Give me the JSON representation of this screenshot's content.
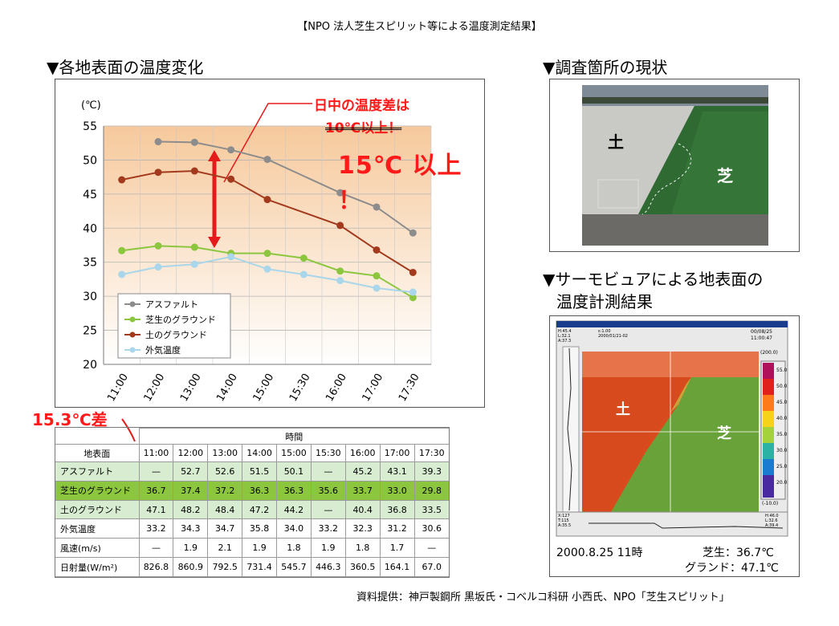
{
  "main_title": "【NPO 法人芝生スピリット等による温度測定結果】",
  "left_heading": "▼各地表面の温度変化",
  "right_heading_1": "▼調査箇所の現状",
  "right_heading_2_line1": "▼サーモビュアによる地表面の",
  "right_heading_2_line2": "温度計測結果",
  "annotation": {
    "day_diff": "日中の温度差は",
    "old_value": "10℃以上！",
    "new_value": "15℃ 以上 ！",
    "diff_label": "15.3℃差"
  },
  "chart_data": {
    "type": "line",
    "x": [
      "11:00",
      "12:00",
      "13:00",
      "14:00",
      "15:00",
      "15:30",
      "16:00",
      "17:00",
      "17:30"
    ],
    "ylabel": "(℃)",
    "ylim": [
      20,
      55
    ],
    "yticks": [
      20,
      25,
      30,
      35,
      40,
      45,
      50,
      55
    ],
    "grid": true,
    "legend_position": "bottom-left",
    "series": [
      {
        "name": "アスファルト",
        "color": "#8c8c8c",
        "values": [
          null,
          52.7,
          52.6,
          51.5,
          50.1,
          null,
          45.2,
          43.1,
          39.3
        ]
      },
      {
        "name": "芝生のグラウンド",
        "color": "#8cc63f",
        "values": [
          36.7,
          37.4,
          37.2,
          36.3,
          36.3,
          35.6,
          33.7,
          33.0,
          29.8
        ]
      },
      {
        "name": "土のグラウンド",
        "color": "#a33a1e",
        "values": [
          47.1,
          48.2,
          48.4,
          47.2,
          44.2,
          null,
          40.4,
          36.8,
          33.5
        ]
      },
      {
        "name": "外気温度",
        "color": "#a9d6ea",
        "values": [
          33.2,
          34.3,
          34.7,
          35.8,
          34.0,
          33.2,
          32.3,
          31.2,
          30.6
        ]
      }
    ]
  },
  "table": {
    "time_header": "時間",
    "row_header": "地表面",
    "times": [
      "11:00",
      "12:00",
      "13:00",
      "14:00",
      "15:00",
      "15:30",
      "16:00",
      "17:00",
      "17:30"
    ],
    "rows": [
      {
        "label": "アスファルト",
        "values": [
          "—",
          "52.7",
          "52.6",
          "51.5",
          "50.1",
          "—",
          "45.2",
          "43.1",
          "39.3"
        ]
      },
      {
        "label": "芝生のグラウンド",
        "values": [
          "36.7",
          "37.4",
          "37.2",
          "36.3",
          "36.3",
          "35.6",
          "33.7",
          "33.0",
          "29.8"
        ]
      },
      {
        "label": "土のグラウンド",
        "values": [
          "47.1",
          "48.2",
          "48.4",
          "47.2",
          "44.2",
          "—",
          "40.4",
          "36.8",
          "33.5"
        ]
      },
      {
        "label": "外気温度",
        "values": [
          "33.2",
          "34.3",
          "34.7",
          "35.8",
          "34.0",
          "33.2",
          "32.3",
          "31.2",
          "30.6"
        ]
      },
      {
        "label": "風速(m/s)",
        "values": [
          "—",
          "1.9",
          "2.1",
          "1.9",
          "1.8",
          "1.9",
          "1.8",
          "1.7",
          "—"
        ]
      },
      {
        "label": "日射量(W/m²)",
        "values": [
          "826.8",
          "860.9",
          "792.5",
          "731.4",
          "545.7",
          "446.3",
          "360.5",
          "164.1",
          "67.0"
        ]
      }
    ]
  },
  "photo": {
    "soil_label": "土",
    "grass_label": "芝"
  },
  "thermo": {
    "soil_label": "土",
    "grass_label": "芝",
    "date_text": "2000.8.25 11時",
    "grass_reading": "芝生：36.7℃",
    "ground_reading": "グランド：47.1℃",
    "scale_values": [
      "55.0",
      "50.0",
      "45.0",
      "40.0",
      "35.0",
      "30.0",
      "25.0",
      "20.0",
      "15.0"
    ],
    "scale_top": "(200.0)",
    "scale_bottom": "(-10.0)",
    "window_date": "00/08/25",
    "window_time": "11:00:47",
    "header_left_1": "H:45.4",
    "header_left_2": "L:32.1",
    "header_left_3": "A:37.3",
    "header_mid_1": "ε:1.00",
    "header_mid_2": "2000/01/21-02",
    "bottom_left_1": "X:127",
    "bottom_left_2": "T:115",
    "bottom_left_3": "A:35.5",
    "bottom_right_1": "H:46.0",
    "bottom_right_2": "L:32.6",
    "bottom_right_3": "A:39.4"
  },
  "source": "資料提供：神戸製鋼所 黒坂氏・コベルコ科研 小西氏、NPO「芝生スピリット」"
}
